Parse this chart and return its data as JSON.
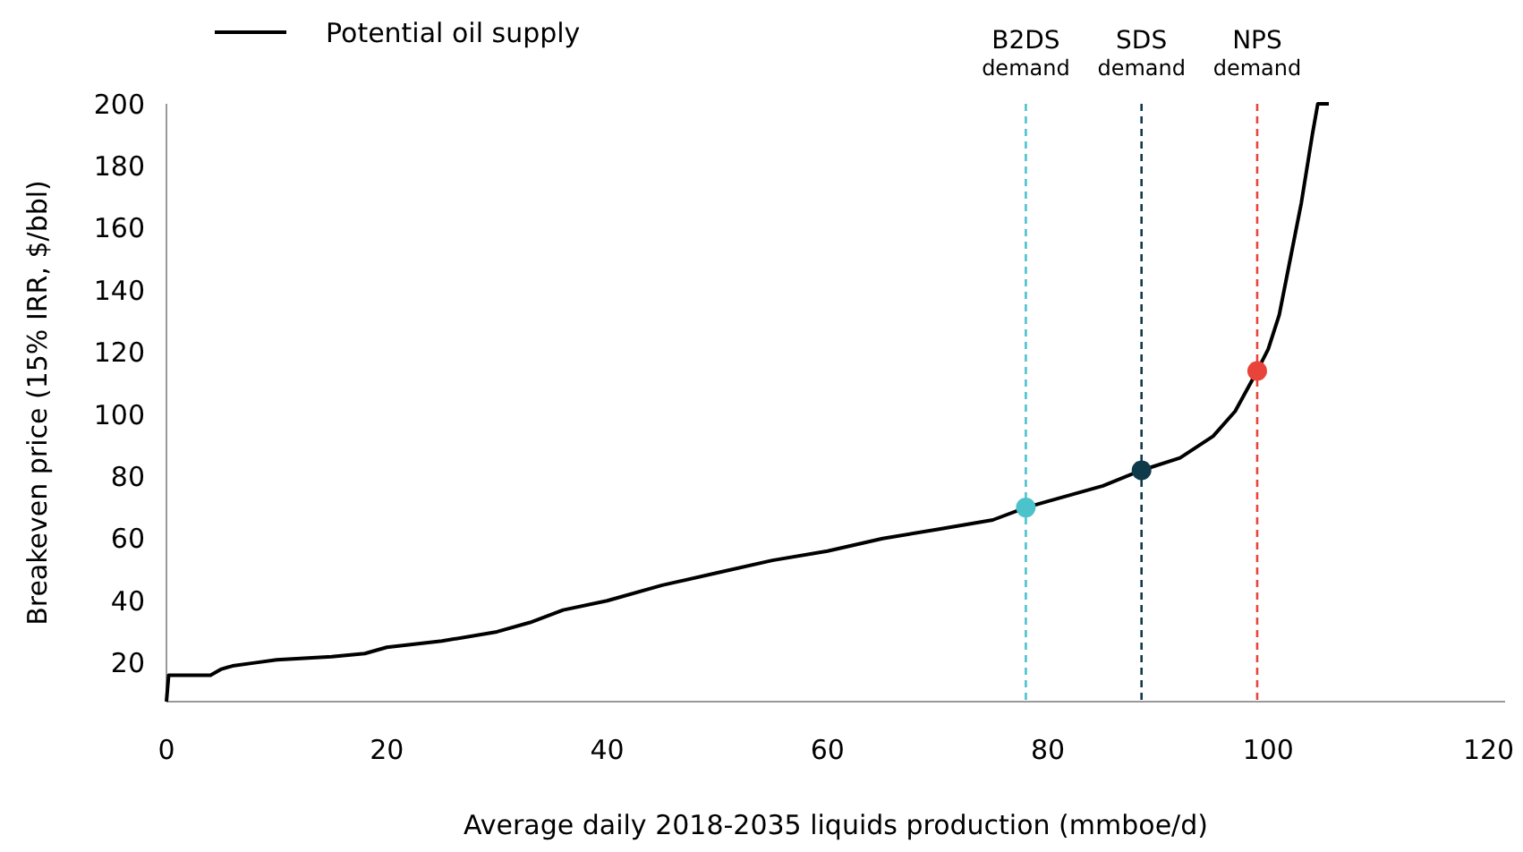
{
  "chart_data": {
    "type": "line",
    "xlabel": "Average daily 2018-2035 liquids production (mmboe/d)",
    "ylabel": "Breakeven price (15% IRR, $/bbl)",
    "xlim": [
      0,
      121.5
    ],
    "xticks": [
      0,
      20,
      40,
      60,
      80,
      100,
      120
    ],
    "ylim": [
      7.5,
      200
    ],
    "yticks": [
      20,
      40,
      60,
      80,
      100,
      120,
      140,
      160,
      180,
      200
    ],
    "grid": false,
    "legend": "top",
    "series": [
      {
        "name": "Potential oil supply",
        "color": "#000000",
        "x": [
          0,
          0.2,
          4,
          5,
          6,
          8,
          10,
          15,
          18,
          20,
          25,
          30,
          33,
          36,
          40,
          45,
          50,
          55,
          60,
          65,
          70,
          75,
          78,
          80,
          85,
          88.5,
          92,
          95,
          97,
          99,
          100,
          101,
          102,
          103,
          104,
          104.5,
          105.5
        ],
        "values": [
          7.5,
          16,
          16,
          18,
          19,
          20,
          21,
          22,
          23,
          25,
          27,
          30,
          33,
          37,
          40,
          45,
          49,
          53,
          56,
          60,
          63,
          66,
          70,
          72,
          77,
          82,
          86,
          93,
          101,
          114,
          121,
          132,
          150,
          168,
          190,
          200,
          200
        ]
      },
      {
        "type": "scatter",
        "marker": "circle",
        "x": [
          78,
          88.5,
          99
        ],
        "values": [
          70,
          82,
          114
        ],
        "colors": [
          "#4cc3cb",
          "#0f3a4a",
          "#e8443a"
        ]
      }
    ],
    "ref_lines": [
      {
        "axis": "x",
        "value": 78,
        "label": "B2DS demand",
        "color": "#4cc3cb",
        "line_style": "dashed"
      },
      {
        "axis": "x",
        "value": 88.5,
        "label": "SDS demand",
        "color": "#0f3a4a",
        "line_style": "dashed"
      },
      {
        "axis": "x",
        "value": 99,
        "label": "NPS demand",
        "color": "#e8443a",
        "line_style": "dashed"
      }
    ]
  }
}
